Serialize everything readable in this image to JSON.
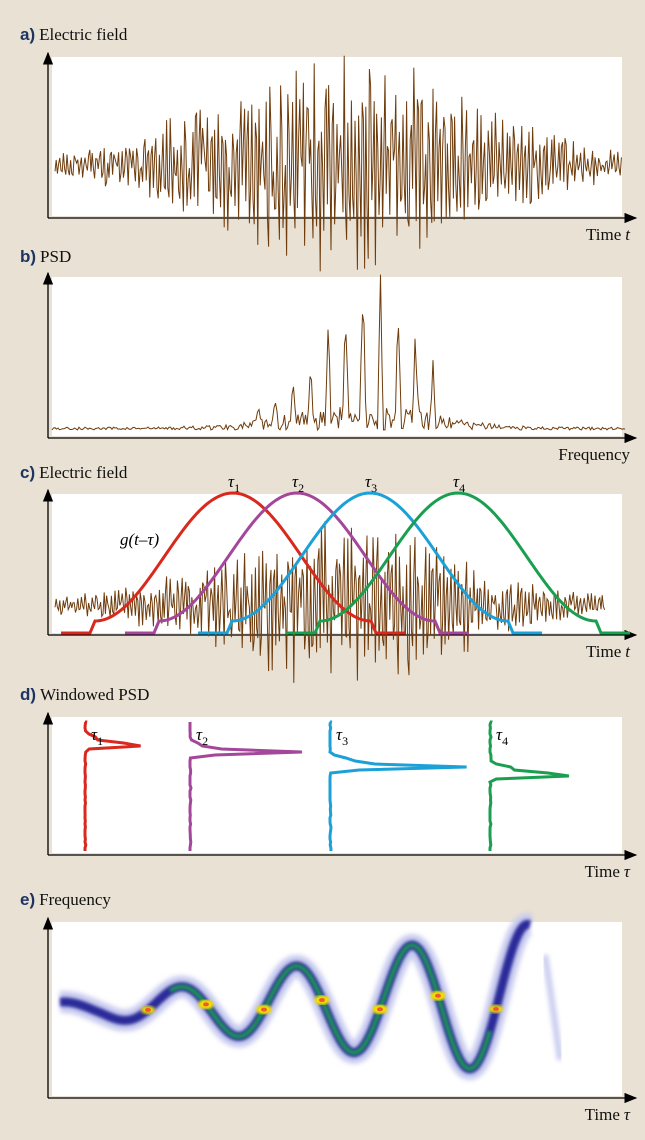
{
  "panels": [
    {
      "letter": "a)",
      "title": "Electric field",
      "x_label": {
        "text": "Time",
        "var": "t"
      }
    },
    {
      "letter": "b)",
      "title": "PSD",
      "x_label": {
        "text": "Frequency"
      }
    },
    {
      "letter": "c)",
      "title": "Electric field",
      "x_label": {
        "text": "Time",
        "var": "t"
      }
    },
    {
      "letter": "d)",
      "title": "Windowed PSD",
      "x_label": {
        "text": "Time",
        "var": "τ"
      }
    },
    {
      "letter": "e)",
      "title": "Frequency",
      "x_label": {
        "text": "Time",
        "var": "τ"
      }
    }
  ],
  "window_label": "g(t–τ)",
  "tau_labels": [
    {
      "base": "τ",
      "sub": "1"
    },
    {
      "base": "τ",
      "sub": "2"
    },
    {
      "base": "τ",
      "sub": "3"
    },
    {
      "base": "τ",
      "sub": "4"
    }
  ]
}
